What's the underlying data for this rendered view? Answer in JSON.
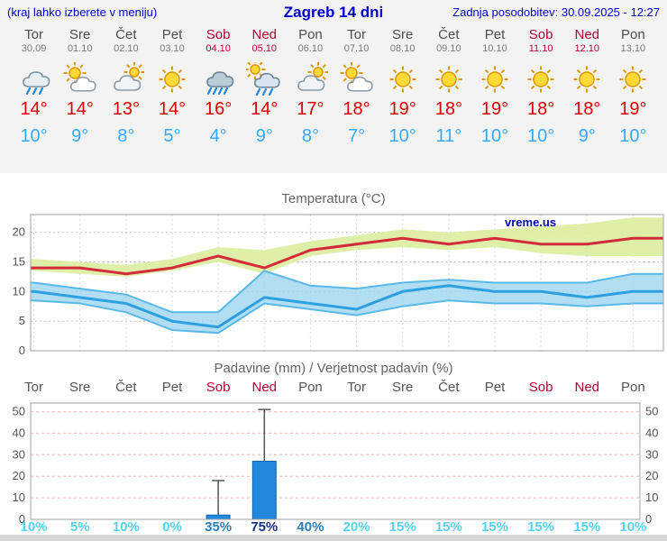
{
  "header": {
    "left_note": "(kraj lahko izberete v meniju)",
    "title": "Zagreb 14 dni",
    "updated": "Zadnja posodobitev: 30.09.2025 - 12:27"
  },
  "colors": {
    "header_blue": "#0000cc",
    "weekend_red": "#bb0033",
    "tmax_red": "#e10000",
    "tmin_blue": "#35a8ff",
    "prob_low": "#55d2ee",
    "prob_mid": "#2d7fb8",
    "prob_high": "#16337f"
  },
  "forecast": {
    "days": [
      {
        "name": "Tor",
        "date": "30.09",
        "icon": "light-rain",
        "tmax": "14°",
        "tmin": "10°",
        "weekend": false
      },
      {
        "name": "Sre",
        "date": "01.10",
        "icon": "partly-cloudy",
        "tmax": "14°",
        "tmin": "9°",
        "weekend": false
      },
      {
        "name": "Čet",
        "date": "02.10",
        "icon": "mostly-cloudy",
        "tmax": "13°",
        "tmin": "8°",
        "weekend": false
      },
      {
        "name": "Pet",
        "date": "03.10",
        "icon": "sunny",
        "tmax": "14°",
        "tmin": "5°",
        "weekend": false
      },
      {
        "name": "Sob",
        "date": "04.10",
        "icon": "rain",
        "tmax": "16°",
        "tmin": "4°",
        "weekend": true
      },
      {
        "name": "Ned",
        "date": "05.10",
        "icon": "showers-sun",
        "tmax": "14°",
        "tmin": "9°",
        "weekend": true
      },
      {
        "name": "Pon",
        "date": "06.10",
        "icon": "mostly-cloudy",
        "tmax": "17°",
        "tmin": "8°",
        "weekend": false
      },
      {
        "name": "Tor",
        "date": "07.10",
        "icon": "partly-cloudy",
        "tmax": "18°",
        "tmin": "7°",
        "weekend": false
      },
      {
        "name": "Sre",
        "date": "08.10",
        "icon": "sunny",
        "tmax": "19°",
        "tmin": "10°",
        "weekend": false
      },
      {
        "name": "Čet",
        "date": "09.10",
        "icon": "sunny",
        "tmax": "18°",
        "tmin": "11°",
        "weekend": false
      },
      {
        "name": "Pet",
        "date": "10.10",
        "icon": "sunny",
        "tmax": "19°",
        "tmin": "10°",
        "weekend": false
      },
      {
        "name": "Sob",
        "date": "11.10",
        "icon": "sunny",
        "tmax": "18°",
        "tmin": "10°",
        "weekend": true
      },
      {
        "name": "Ned",
        "date": "12.10",
        "icon": "sunny",
        "tmax": "18°",
        "tmin": "9°",
        "weekend": true
      },
      {
        "name": "Pon",
        "date": "13.10",
        "icon": "sunny",
        "tmax": "19°",
        "tmin": "10°",
        "weekend": false
      }
    ]
  },
  "chart_data": [
    {
      "type": "line",
      "title": "Temperatura (°C)",
      "watermark": "vreme.us",
      "categories": [
        "Tor 30.09",
        "Sre 01.10",
        "Čet 02.10",
        "Pet 03.10",
        "Sob 04.10",
        "Ned 05.10",
        "Pon 06.10",
        "Tor 07.10",
        "Sre 08.10",
        "Čet 09.10",
        "Pet 10.10",
        "Sob 11.10",
        "Ned 12.10",
        "Pon 13.10"
      ],
      "ylim": [
        0,
        23
      ],
      "yticks": [
        0,
        5,
        10,
        15,
        20
      ],
      "grid": true,
      "legend": "none",
      "series": [
        {
          "name": "max-temperature",
          "color": "#d42b3a",
          "values": [
            14,
            14,
            13,
            14,
            16,
            14,
            17,
            18,
            19,
            18,
            19,
            18,
            18,
            19
          ]
        },
        {
          "name": "min-temperature",
          "color": "#2da0e0",
          "values": [
            10,
            9,
            8,
            5,
            4,
            9,
            8,
            7,
            10,
            11,
            10,
            10,
            9,
            10
          ]
        }
      ],
      "bands": [
        {
          "name": "max-temperature-range",
          "color": "#dbed9e",
          "opacity": 0.9,
          "upper": [
            15.5,
            15,
            14.5,
            15.5,
            17.5,
            17,
            18.5,
            19.5,
            20.5,
            20,
            20.5,
            21,
            21.5,
            22.5
          ],
          "lower": [
            13.5,
            13,
            12.5,
            13.5,
            15,
            13,
            16,
            17,
            17.5,
            17,
            17.5,
            16.5,
            16,
            16
          ]
        },
        {
          "name": "min-temperature-range",
          "color": "#9fd6f0",
          "opacity": 0.8,
          "edge": "#59b9e8",
          "upper": [
            11.5,
            10.5,
            9.5,
            6.5,
            6.5,
            13.5,
            11,
            10.5,
            11.5,
            12,
            11.5,
            11.5,
            11.5,
            13
          ],
          "lower": [
            8.5,
            8,
            6.5,
            3.5,
            3,
            8,
            7,
            6,
            7.5,
            8.5,
            8,
            8,
            7.5,
            8
          ]
        }
      ]
    },
    {
      "type": "bar",
      "title": "Padavine (mm) / Verjetnost padavin (%)",
      "categories": [
        "Tor",
        "Sre",
        "Čet",
        "Pet",
        "Sob",
        "Ned",
        "Pon",
        "Tor",
        "Sre",
        "Čet",
        "Pet",
        "Sob",
        "Ned",
        "Pon"
      ],
      "weekend": [
        false,
        false,
        false,
        false,
        true,
        true,
        false,
        false,
        false,
        false,
        false,
        true,
        true,
        false
      ],
      "precipitation_mm": [
        0,
        0,
        0,
        0,
        2,
        27,
        0,
        0,
        0,
        0,
        0,
        0,
        0,
        0
      ],
      "precipitation_max_mm": [
        0,
        0,
        0,
        0,
        18,
        51,
        0,
        0,
        0,
        0,
        0,
        0,
        0,
        0
      ],
      "probability_pct": [
        10,
        5,
        10,
        0,
        35,
        75,
        40,
        20,
        15,
        15,
        15,
        15,
        15,
        10
      ],
      "ylim": [
        0,
        54
      ],
      "yticks": [
        0,
        10,
        20,
        30,
        40,
        50
      ],
      "bar_color": "#2288dd",
      "bar_border": "#1166aa",
      "grid": true
    }
  ]
}
